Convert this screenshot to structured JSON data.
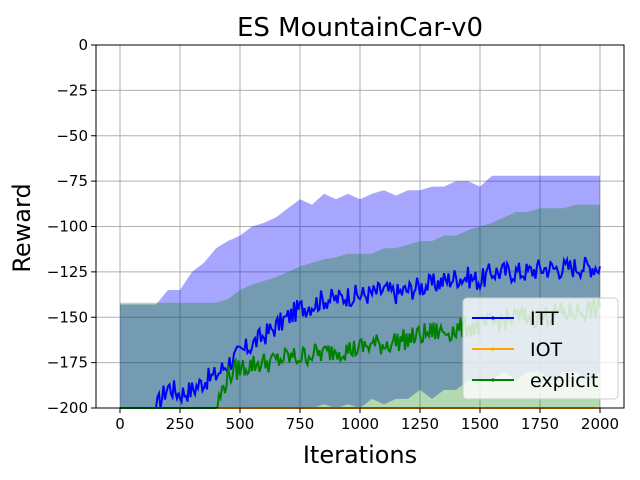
{
  "chart_data": {
    "type": "line",
    "title": "ES MountainCar-v0",
    "xlabel": "Iterations",
    "ylabel": "Reward",
    "xlim": [
      -100,
      2100
    ],
    "ylim": [
      -200,
      0
    ],
    "xticks": [
      0,
      250,
      500,
      750,
      1000,
      1250,
      1500,
      1750,
      2000
    ],
    "yticks": [
      0,
      -25,
      -50,
      -75,
      -100,
      -125,
      -150,
      -175,
      -200
    ],
    "xtick_labels": [
      "0",
      "250",
      "500",
      "750",
      "1000",
      "1250",
      "1500",
      "1750",
      "2000"
    ],
    "ytick_labels": [
      "0",
      "−25",
      "−50",
      "−75",
      "−100",
      "−125",
      "−150",
      "−175",
      "−200"
    ],
    "grid": true,
    "legend_position": "bottom-right",
    "series": [
      {
        "name": "ITT",
        "color": "#0000ff",
        "x": [
          0,
          100,
          150,
          200,
          250,
          300,
          350,
          400,
          450,
          500,
          550,
          600,
          650,
          700,
          750,
          800,
          850,
          900,
          950,
          1000,
          1050,
          1100,
          1150,
          1200,
          1250,
          1300,
          1350,
          1400,
          1450,
          1500,
          1550,
          1600,
          1650,
          1700,
          1750,
          1800,
          1850,
          1900,
          1950,
          2000
        ],
        "mean": [
          -200,
          -200,
          -200,
          -188,
          -192,
          -190,
          -185,
          -182,
          -175,
          -170,
          -165,
          -160,
          -155,
          -150,
          -145,
          -143,
          -140,
          -140,
          -138,
          -138,
          -137,
          -135,
          -137,
          -135,
          -133,
          -132,
          -130,
          -128,
          -128,
          -130,
          -125,
          -125,
          -125,
          -125,
          -123,
          -123,
          -123,
          -122,
          -122,
          -122
        ],
        "upper": [
          -143,
          -143,
          -143,
          -135,
          -135,
          -125,
          -120,
          -112,
          -108,
          -105,
          -100,
          -98,
          -95,
          -90,
          -85,
          -88,
          -82,
          -85,
          -82,
          -85,
          -82,
          -80,
          -83,
          -80,
          -80,
          -78,
          -78,
          -75,
          -75,
          -78,
          -72,
          -72,
          -72,
          -72,
          -72,
          -72,
          -72,
          -72,
          -72,
          -72
        ],
        "lower": [
          -200,
          -200,
          -200,
          -200,
          -200,
          -200,
          -200,
          -200,
          -200,
          -200,
          -200,
          -200,
          -200,
          -200,
          -200,
          -200,
          -198,
          -200,
          -198,
          -200,
          -195,
          -198,
          -195,
          -195,
          -190,
          -195,
          -190,
          -190,
          -185,
          -185,
          -185,
          -180,
          -185,
          -180,
          -180,
          -185,
          -180,
          -180,
          -185,
          -180
        ]
      },
      {
        "name": "IOT",
        "color": "#ffa500",
        "x": [
          0,
          2000
        ],
        "mean": [
          -200,
          -200
        ],
        "upper": [
          -200,
          -200
        ],
        "lower": [
          -200,
          -200
        ]
      },
      {
        "name": "explicit",
        "color": "#008000",
        "x": [
          0,
          100,
          150,
          200,
          250,
          300,
          350,
          400,
          450,
          500,
          550,
          600,
          650,
          700,
          750,
          800,
          850,
          900,
          950,
          1000,
          1050,
          1100,
          1150,
          1200,
          1250,
          1300,
          1350,
          1400,
          1450,
          1500,
          1550,
          1600,
          1650,
          1700,
          1750,
          1800,
          1850,
          1900,
          1950,
          2000
        ],
        "mean": [
          -200,
          -200,
          -200,
          -200,
          -200,
          -200,
          -200,
          -200,
          -182,
          -178,
          -176,
          -175,
          -174,
          -172,
          -172,
          -170,
          -170,
          -168,
          -168,
          -167,
          -165,
          -165,
          -163,
          -162,
          -160,
          -158,
          -158,
          -157,
          -155,
          -155,
          -153,
          -152,
          -150,
          -150,
          -150,
          -148,
          -148,
          -147,
          -146,
          -145
        ],
        "upper": [
          -142,
          -142,
          -142,
          -142,
          -142,
          -142,
          -142,
          -142,
          -140,
          -135,
          -132,
          -130,
          -128,
          -125,
          -122,
          -120,
          -118,
          -117,
          -115,
          -115,
          -115,
          -112,
          -112,
          -110,
          -108,
          -108,
          -105,
          -105,
          -102,
          -100,
          -98,
          -95,
          -92,
          -92,
          -90,
          -90,
          -90,
          -88,
          -88,
          -88
        ],
        "lower": [
          -200,
          -200,
          -200,
          -200,
          -200,
          -200,
          -200,
          -200,
          -200,
          -200,
          -200,
          -200,
          -200,
          -200,
          -200,
          -200,
          -200,
          -200,
          -200,
          -200,
          -200,
          -200,
          -200,
          -200,
          -200,
          -200,
          -200,
          -200,
          -200,
          -200,
          -200,
          -200,
          -200,
          -200,
          -200,
          -200,
          -200,
          -200,
          -200,
          -200
        ]
      }
    ]
  }
}
